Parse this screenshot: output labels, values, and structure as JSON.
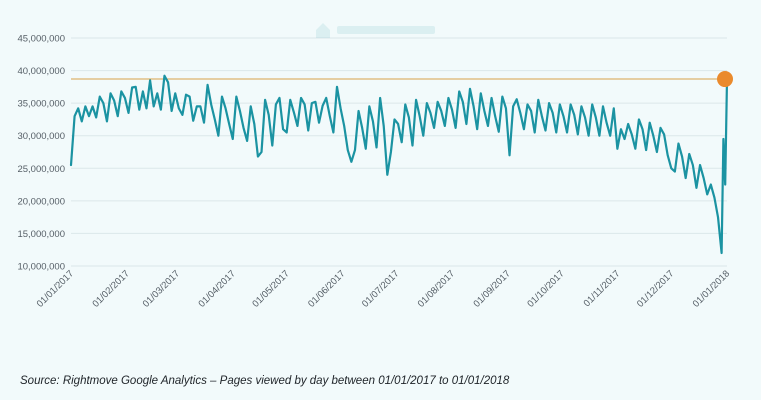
{
  "colors": {
    "background": "#f2fafb",
    "line": "#1b93a2",
    "reference_line": "#d8a24a",
    "highlight_point": "#ea8a2c",
    "gridline": "#dbe7ea",
    "axis_text": "#555e66"
  },
  "watermark_text": "Rightmove",
  "source_note": "Source: Rightmove Google Analytics – Pages viewed by day between 01/01/2017 to 01/01/2018",
  "chart_data": {
    "type": "line",
    "title": "",
    "xlabel": "",
    "ylabel": "",
    "ylim": [
      10000000,
      45000000
    ],
    "yticks": [
      {
        "value": 10000000,
        "label": "10,000,000"
      },
      {
        "value": 15000000,
        "label": "15,000,000"
      },
      {
        "value": 20000000,
        "label": "20,000,000"
      },
      {
        "value": 25000000,
        "label": "25,000,000"
      },
      {
        "value": 30000000,
        "label": "30,000,000"
      },
      {
        "value": 35000000,
        "label": "35,000,000"
      },
      {
        "value": 40000000,
        "label": "40,000,000"
      },
      {
        "value": 45000000,
        "label": "45,000,000"
      }
    ],
    "xlim": [
      "2017-01-01",
      "2018-01-01"
    ],
    "xticks": [
      {
        "date": "2017-01-01",
        "label": "01/01/2017"
      },
      {
        "date": "2017-02-01",
        "label": "01/02/2017"
      },
      {
        "date": "2017-03-01",
        "label": "01/03/2017"
      },
      {
        "date": "2017-04-01",
        "label": "01/04/2017"
      },
      {
        "date": "2017-05-01",
        "label": "01/05/2017"
      },
      {
        "date": "2017-06-01",
        "label": "01/06/2017"
      },
      {
        "date": "2017-07-01",
        "label": "01/07/2017"
      },
      {
        "date": "2017-08-01",
        "label": "01/08/2017"
      },
      {
        "date": "2017-09-01",
        "label": "01/09/2017"
      },
      {
        "date": "2017-10-01",
        "label": "01/10/2017"
      },
      {
        "date": "2017-11-01",
        "label": "01/11/2017"
      },
      {
        "date": "2017-12-01",
        "label": "01/12/2017"
      },
      {
        "date": "2018-01-01",
        "label": "01/01/2018"
      }
    ],
    "grid": "horizontal",
    "reference_line": {
      "value": 38700000
    },
    "highlight_point": {
      "date": "2018-01-01",
      "value": 38700000
    },
    "series": [
      {
        "name": "",
        "points": [
          [
            "2017-01-01",
            25500000
          ],
          [
            "2017-01-03",
            33000000
          ],
          [
            "2017-01-05",
            34200000
          ],
          [
            "2017-01-07",
            32200000
          ],
          [
            "2017-01-09",
            34500000
          ],
          [
            "2017-01-11",
            33000000
          ],
          [
            "2017-01-13",
            34500000
          ],
          [
            "2017-01-15",
            32800000
          ],
          [
            "2017-01-17",
            36000000
          ],
          [
            "2017-01-19",
            35000000
          ],
          [
            "2017-01-21",
            32200000
          ],
          [
            "2017-01-23",
            36500000
          ],
          [
            "2017-01-25",
            35400000
          ],
          [
            "2017-01-27",
            33000000
          ],
          [
            "2017-01-29",
            36800000
          ],
          [
            "2017-01-31",
            35800000
          ],
          [
            "2017-02-02",
            33500000
          ],
          [
            "2017-02-04",
            37400000
          ],
          [
            "2017-02-06",
            37500000
          ],
          [
            "2017-02-08",
            34000000
          ],
          [
            "2017-02-10",
            36800000
          ],
          [
            "2017-02-12",
            34200000
          ],
          [
            "2017-02-14",
            38500000
          ],
          [
            "2017-02-16",
            34500000
          ],
          [
            "2017-02-18",
            36500000
          ],
          [
            "2017-02-20",
            34000000
          ],
          [
            "2017-02-22",
            39200000
          ],
          [
            "2017-02-24",
            38200000
          ],
          [
            "2017-02-26",
            33800000
          ],
          [
            "2017-02-28",
            36500000
          ],
          [
            "2017-03-02",
            34200000
          ],
          [
            "2017-03-04",
            33200000
          ],
          [
            "2017-03-06",
            36300000
          ],
          [
            "2017-03-08",
            36000000
          ],
          [
            "2017-03-10",
            32300000
          ],
          [
            "2017-03-12",
            34500000
          ],
          [
            "2017-03-14",
            34500000
          ],
          [
            "2017-03-16",
            32000000
          ],
          [
            "2017-03-18",
            37800000
          ],
          [
            "2017-03-20",
            34800000
          ],
          [
            "2017-03-22",
            32500000
          ],
          [
            "2017-03-24",
            30000000
          ],
          [
            "2017-03-26",
            36000000
          ],
          [
            "2017-03-28",
            34200000
          ],
          [
            "2017-03-30",
            31800000
          ],
          [
            "2017-04-01",
            29500000
          ],
          [
            "2017-04-03",
            36000000
          ],
          [
            "2017-04-05",
            33800000
          ],
          [
            "2017-04-07",
            31200000
          ],
          [
            "2017-04-09",
            29200000
          ],
          [
            "2017-04-11",
            34500000
          ],
          [
            "2017-04-13",
            31800000
          ],
          [
            "2017-04-15",
            26800000
          ],
          [
            "2017-04-17",
            27500000
          ],
          [
            "2017-04-19",
            35500000
          ],
          [
            "2017-04-21",
            33200000
          ],
          [
            "2017-04-23",
            28500000
          ],
          [
            "2017-04-25",
            34800000
          ],
          [
            "2017-04-27",
            35800000
          ],
          [
            "2017-04-29",
            31000000
          ],
          [
            "2017-05-01",
            30500000
          ],
          [
            "2017-05-03",
            35500000
          ],
          [
            "2017-05-05",
            33600000
          ],
          [
            "2017-05-07",
            31500000
          ],
          [
            "2017-05-09",
            35800000
          ],
          [
            "2017-05-11",
            34800000
          ],
          [
            "2017-05-13",
            30800000
          ],
          [
            "2017-05-15",
            35000000
          ],
          [
            "2017-05-17",
            35200000
          ],
          [
            "2017-05-19",
            32000000
          ],
          [
            "2017-05-21",
            34600000
          ],
          [
            "2017-05-23",
            35800000
          ],
          [
            "2017-05-25",
            33000000
          ],
          [
            "2017-05-27",
            30500000
          ],
          [
            "2017-05-29",
            37500000
          ],
          [
            "2017-05-31",
            34200000
          ],
          [
            "2017-06-02",
            31500000
          ],
          [
            "2017-06-04",
            27800000
          ],
          [
            "2017-06-06",
            26000000
          ],
          [
            "2017-06-08",
            27800000
          ],
          [
            "2017-06-10",
            33800000
          ],
          [
            "2017-06-12",
            31200000
          ],
          [
            "2017-06-14",
            28000000
          ],
          [
            "2017-06-16",
            34500000
          ],
          [
            "2017-06-18",
            32200000
          ],
          [
            "2017-06-20",
            28200000
          ],
          [
            "2017-06-22",
            35800000
          ],
          [
            "2017-06-24",
            31500000
          ],
          [
            "2017-06-26",
            24000000
          ],
          [
            "2017-06-28",
            27500000
          ],
          [
            "2017-06-30",
            32500000
          ],
          [
            "2017-07-02",
            31800000
          ],
          [
            "2017-07-04",
            29000000
          ],
          [
            "2017-07-06",
            34800000
          ],
          [
            "2017-07-08",
            32800000
          ],
          [
            "2017-07-10",
            28500000
          ],
          [
            "2017-07-12",
            35500000
          ],
          [
            "2017-07-14",
            33000000
          ],
          [
            "2017-07-16",
            30000000
          ],
          [
            "2017-07-18",
            35000000
          ],
          [
            "2017-07-20",
            33500000
          ],
          [
            "2017-07-22",
            31200000
          ],
          [
            "2017-07-24",
            35200000
          ],
          [
            "2017-07-26",
            33800000
          ],
          [
            "2017-07-28",
            31500000
          ],
          [
            "2017-07-30",
            35800000
          ],
          [
            "2017-08-01",
            34000000
          ],
          [
            "2017-08-03",
            31200000
          ],
          [
            "2017-08-05",
            36800000
          ],
          [
            "2017-08-07",
            35200000
          ],
          [
            "2017-08-09",
            31800000
          ],
          [
            "2017-08-11",
            37200000
          ],
          [
            "2017-08-13",
            34500000
          ],
          [
            "2017-08-15",
            31000000
          ],
          [
            "2017-08-17",
            36500000
          ],
          [
            "2017-08-19",
            33800000
          ],
          [
            "2017-08-21",
            31500000
          ],
          [
            "2017-08-23",
            35800000
          ],
          [
            "2017-08-25",
            33000000
          ],
          [
            "2017-08-27",
            30600000
          ],
          [
            "2017-08-29",
            36000000
          ],
          [
            "2017-08-31",
            34200000
          ],
          [
            "2017-09-02",
            27000000
          ],
          [
            "2017-09-04",
            34500000
          ],
          [
            "2017-09-06",
            35600000
          ],
          [
            "2017-09-08",
            33500000
          ],
          [
            "2017-09-10",
            31000000
          ],
          [
            "2017-09-12",
            34800000
          ],
          [
            "2017-09-14",
            33800000
          ],
          [
            "2017-09-16",
            30500000
          ],
          [
            "2017-09-18",
            35500000
          ],
          [
            "2017-09-20",
            33000000
          ],
          [
            "2017-09-22",
            30800000
          ],
          [
            "2017-09-24",
            35000000
          ],
          [
            "2017-09-26",
            33500000
          ],
          [
            "2017-09-28",
            30500000
          ],
          [
            "2017-09-30",
            34800000
          ],
          [
            "2017-10-02",
            33000000
          ],
          [
            "2017-10-04",
            30500000
          ],
          [
            "2017-10-06",
            34800000
          ],
          [
            "2017-10-08",
            33200000
          ],
          [
            "2017-10-10",
            30200000
          ],
          [
            "2017-10-12",
            34500000
          ],
          [
            "2017-10-14",
            32800000
          ],
          [
            "2017-10-16",
            30000000
          ],
          [
            "2017-10-18",
            34800000
          ],
          [
            "2017-10-20",
            32800000
          ],
          [
            "2017-10-22",
            30000000
          ],
          [
            "2017-10-24",
            34500000
          ],
          [
            "2017-10-26",
            32000000
          ],
          [
            "2017-10-28",
            30000000
          ],
          [
            "2017-10-30",
            34200000
          ],
          [
            "2017-11-01",
            28000000
          ],
          [
            "2017-11-03",
            31000000
          ],
          [
            "2017-11-05",
            29500000
          ],
          [
            "2017-11-07",
            31800000
          ],
          [
            "2017-11-09",
            30200000
          ],
          [
            "2017-11-11",
            28000000
          ],
          [
            "2017-11-13",
            32500000
          ],
          [
            "2017-11-15",
            31000000
          ],
          [
            "2017-11-17",
            27800000
          ],
          [
            "2017-11-19",
            32000000
          ],
          [
            "2017-11-21",
            30000000
          ],
          [
            "2017-11-23",
            27500000
          ],
          [
            "2017-11-25",
            31200000
          ],
          [
            "2017-11-27",
            30200000
          ],
          [
            "2017-11-29",
            27000000
          ],
          [
            "2017-12-01",
            25000000
          ],
          [
            "2017-12-03",
            24500000
          ],
          [
            "2017-12-05",
            28800000
          ],
          [
            "2017-12-07",
            26800000
          ],
          [
            "2017-12-09",
            23500000
          ],
          [
            "2017-12-11",
            27200000
          ],
          [
            "2017-12-13",
            25500000
          ],
          [
            "2017-12-15",
            22000000
          ],
          [
            "2017-12-17",
            25500000
          ],
          [
            "2017-12-19",
            23500000
          ],
          [
            "2017-12-21",
            21000000
          ],
          [
            "2017-12-23",
            22500000
          ],
          [
            "2017-12-25",
            20500000
          ],
          [
            "2017-12-27",
            17500000
          ],
          [
            "2017-12-29",
            12000000
          ],
          [
            "2017-12-30",
            29500000
          ],
          [
            "2017-12-31",
            22500000
          ],
          [
            "2018-01-01",
            38700000
          ]
        ]
      }
    ]
  }
}
